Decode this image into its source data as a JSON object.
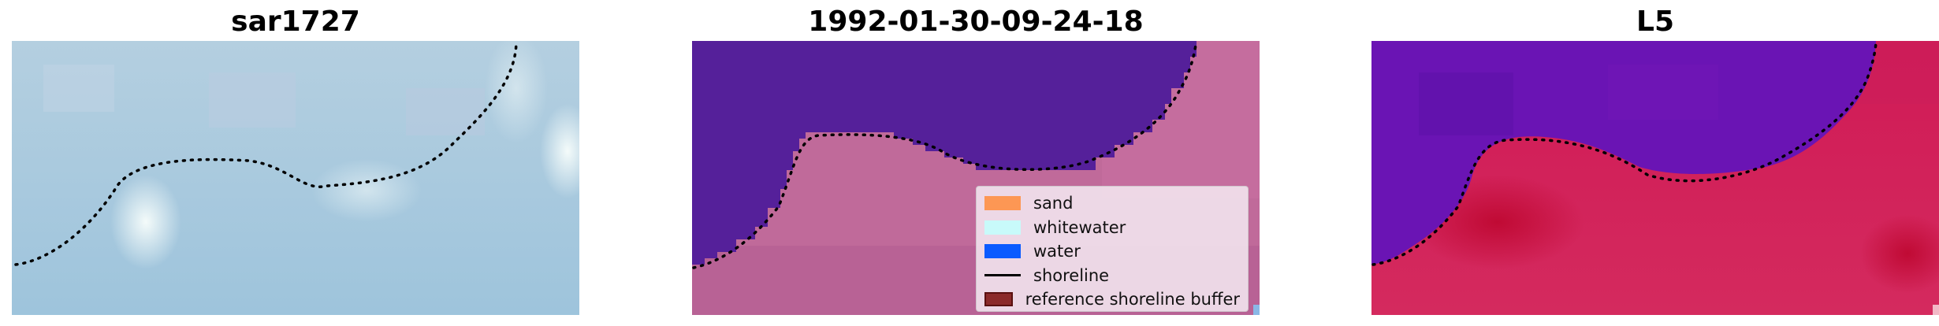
{
  "panels": [
    {
      "title": "sar1727"
    },
    {
      "title": "1992-01-30-09-24-18"
    },
    {
      "title": "L5"
    }
  ],
  "legend": {
    "items": [
      {
        "label": "sand",
        "color": "#ff8c3a",
        "kind": "patch"
      },
      {
        "label": "whitewater",
        "color": "#c8fafa",
        "kind": "patch"
      },
      {
        "label": "water",
        "color": "#0a5bff",
        "kind": "patch"
      },
      {
        "label": "shoreline",
        "color": "#000000",
        "kind": "line"
      },
      {
        "label": "reference shoreline buffer",
        "color": "#8b2a2a",
        "kind": "patch"
      }
    ]
  },
  "colors": {
    "rgb_background": "#a6c6dc",
    "water_class": "#55209a",
    "land_class": "#c06a9a",
    "ndwi_water": "#6a14b4",
    "ndwi_land": "#d21852"
  }
}
